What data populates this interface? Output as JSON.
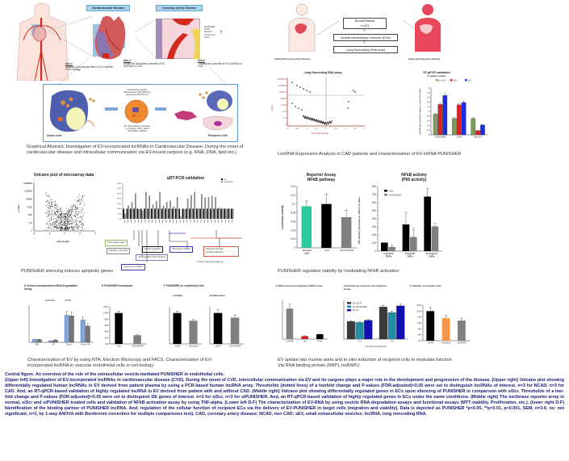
{
  "graphical_abstract": {
    "box_cvd": "Cardiovascular Disease",
    "box_cad": "Coronary Artery Disease",
    "aim1_title": "Aim-1",
    "aim1_text": "Analysis of functional effect of EV-lncRNA in EC biology",
    "aim2_title": "Aim-2",
    "aim2_text": "Unveil the biomarker potential of EV-lncRNAs in CVD",
    "aim3_title": "Aim-3",
    "aim3_text": "Therapeutic potential of EV-lncRNAs in CVD",
    "aim3_genes": [
      "PUNISHER",
      "GAS5",
      "MALAT1",
      "FGF14-AS1",
      "HCL2"
    ],
    "donor_label": "Donor cells",
    "recipient_label": "Recipient cells",
    "ev_text": [
      "Extracellular vesicles",
      "Microvesicles (100-1000 nm)",
      "Exosomes (30-100 nm)"
    ],
    "ev_bottom_text": [
      "EV with bioactive molecules",
      "i.e. Proteins, DNA, mRNA",
      "(MicroRNA, lncRNA)"
    ],
    "donor_parts": [
      "MVB",
      "EV",
      "Cytoplasm",
      "RBP",
      "PUNISHER",
      "GAS5",
      "Nucleus",
      "Exosomes"
    ],
    "recipient_parts": [
      "Endothelial cells",
      "Cytoplasm",
      "Nucleus",
      "Fibroblasts",
      "Cardiomyocytes"
    ],
    "caption": "Graphical Abstract. Investigation of EV-incorporated lncRNAs in Cardiovascular Disease. During the onset of cardiovascular disease and intracellular communication via EV-bound cargoes (e.g. RNA, DNA, lipid etc.)"
  },
  "patient_flow": {
    "box1_line1": "Blood/Plasma",
    "box1_line2": "n=221",
    "box2": "Isolate extracellular Vesicles (EVs)",
    "box3": "Long Noncoding RNA array",
    "healthy_label": "Healthy (Non-Coronary Artery Disease)",
    "disease_label": "Disease (Coronary Artery Disease)"
  },
  "lnc_array": {
    "title": "Long Noncoding RNA array",
    "xlabel": "log2 (fold change)",
    "ylabel": "p-value",
    "yticks": [
      "0.0078125",
      "0.015625",
      "0.03125",
      "0.0625",
      "0.125",
      "0.25",
      "0.5",
      "1"
    ],
    "xticks": [
      "-2",
      "-1.5",
      "-1",
      "-0.5",
      "0",
      "0.5",
      "1",
      "1.5",
      "2"
    ]
  },
  "rtqpcr_patient": {
    "title": "RT-qPCR validation",
    "subtitle": "in patient sample",
    "ylabel": "lncRNA expression (Fold change to control (Non-CAD))",
    "caption": "LncRNA Expression Analysis in CAD patients and characterization of EV-lnRNA PUNISHER"
  },
  "microarray_volcano": {
    "title": "Volcano plot of microarray data",
    "xlabel": "ratio (log2)",
    "ylabel": "p-value",
    "yticks": [
      "0.000001",
      "0.00001",
      "0.0001",
      "0.001",
      "0.01",
      "0.1",
      "1"
    ],
    "xticks": [
      "-4",
      "-2",
      "0",
      "2",
      "4"
    ]
  },
  "qrtpcr_validation": {
    "title": "qRT-PCR validation",
    "ylabel": "Expression of transcripts (% to siScr)",
    "legend": [
      "siScr",
      "siPUNISHER"
    ],
    "categories_boxes": [
      {
        "label": "Transcription factor",
        "color": "#8fbf5a"
      },
      {
        "label": "Signaling, TGF-beta",
        "color": "#888888"
      },
      {
        "label": "Growth regulation",
        "color": "#222222"
      },
      {
        "label": "Chromatin modifiers",
        "color": "#3a3aa8"
      },
      {
        "label": "Cardiogenesis, Wnt signaling",
        "color": "#8a6fc0"
      },
      {
        "label": "Component of PRC2",
        "color": "#3a3aa8"
      },
      {
        "label": "Apoptosis and cell growth/proliferation",
        "color": "#d0603a"
      }
    ],
    "source": "Source: www.genecards.org",
    "caption": "PUNISHER silencing induces apoptotic genes"
  },
  "reporter_assay": {
    "title_line1": "Reporter Assay",
    "title_line2": "NFkB pathway",
    "caption": "PUNISHER regulates  viability by modulating NFkB activation"
  },
  "nfkb_activity": {
    "title_line1": "NFkB activity",
    "title_line2": "(P65 activity)"
  },
  "lower_left": {
    "d_title": "D  Vesicle-incorporated lncRNA Degradation Assay",
    "e_title": "E  PUNISHER Knockdown",
    "f_title": "F  PUNISHER on endothelial cells",
    "f_sub1": "Viability",
    "f_sub2": "Proliferation",
    "caption": "Characterization of EV by using NTA, Electron Microcopy and FACS. Characterization of EV-incorporated lncRNA in vascular endothelial cells in cell biology"
  },
  "lower_right": {
    "d_title": "D  RNA-immunoprecipitation (RIP) Assay",
    "e_title": "E  EV-induced recipient cell migration assay",
    "f_title": "F  Viability of recipient cells",
    "caption_line1": "EV uptake into murine aorta and in vitro induction  of recipient cells to modulate function",
    "caption_line2": "Via RNA binding protein (RBP), hnRNPU"
  },
  "central_caption": {
    "title": "Central figure. An overview of the role of the extracellular vesicle-mediated PUNISHER in endothelial cells.",
    "body": "(Upper left) Investigation of EV-incorporated lncRNAs in cardiovascular disease (CVD). During the onset of CVD, intercellular communication via EV and its cargoes plays a major role in the development and progression of the disease. (Upper right) Volcano plot showing differentially regulated human lncRNAs in EV derived from patient plasma by using a PCR-based human lncRNA array. Thresholds (dotted lines) of a twofold change and P-values (FDR-adjusted)<0.05 were set to distinguish lncRNAs of interest. n=3 for NCAD, n=3 for CAD. And, an RT-qPCR-based validation of highly regulated lncRNA in EV derived from patient with and without CAD. (Middle right) Volcano plot showing differentially regulated genes in ECs upon silencing of PUNISHER in comparison with siScr. Thresholds of a two-fold change and P-values (FDR-adjusted)<0.05 were set to distinguish DE genes of interest. n=3 for siScr, n=3 for siPUNISHER. And, an RT-qPCR-based validation of highly regulated genes in ECs under the same conditions. (Middle right) The luciferase reporter array in normal, siScr and siPUNISHER treated cells and validation of NFkB activation assay by using TNF-alpha. (Lower left D-F) The characterization of EV-RNA by using vesicle RNA-degradation assays and functional assays (MTT-viability, Proliferation, etc.). (lower right D-F) Identification of the binding partner of PUNISHER lncRNA. And, regulation of the cellular function of recipient ECs via the delivery of EV-PUNISHER in target cells (migration and viability). Data is depicted as PUNISHER *p<0.05, **p<0.01, p<0.001, SEM, n=3-6; ns: not significant, n=3, by 1-way ANOVA with Bonferroni correction for multiple comparisons test). CAD, coronary artery disease; NCAD, non CAD; sEV, small extracellular vesicles; lncRNA, long noncoding RNA."
  },
  "chart_data": [
    {
      "id": "rtqpcr_patient",
      "type": "bar",
      "title": "RT-qPCR validation in patient sample",
      "categories": [
        "PUNISHER",
        "GAS5",
        "MALAT1"
      ],
      "series": [
        {
          "name": "No CAD",
          "color": "#7f9a5c",
          "values": [
            0.88,
            0.7,
            0.7
          ]
        },
        {
          "name": "CAD",
          "color": "#e02020",
          "values": [
            1.3,
            1.28,
            0.18
          ]
        },
        {
          "name": "ACS",
          "color": "#1a2ee0",
          "values": [
            1.68,
            1.38,
            0.42
          ]
        }
      ],
      "ylabel": "lncRNA expression (Fold change to control (Non-CAD))",
      "yticks": [
        "0",
        "0.2",
        "0.4",
        "0.6",
        "0.8",
        "1",
        "1.2",
        "1.4",
        "1.6",
        "1.8",
        "2"
      ],
      "ylim": [
        0,
        2
      ],
      "legend": "top"
    },
    {
      "id": "reporter_assay",
      "type": "bar",
      "title": "Reporter Assay NFkB pathway",
      "categories": [
        "Normal cells",
        "siScr",
        "siPUNISHER"
      ],
      "values": [
        0.095,
        0.1,
        0.07
      ],
      "errors": [
        0.012,
        0.022,
        0.016
      ],
      "colors": [
        "#2ec9a0",
        "#000000",
        "#808080"
      ],
      "ylabel": "Luciferase activity",
      "yticks": [
        "0",
        "0.02",
        "0.04",
        "0.06",
        "0.08",
        "0.1",
        "0.12",
        "0.14"
      ],
      "ylim": [
        0,
        0.14
      ],
      "annotations": [
        "",
        "",
        "*"
      ]
    },
    {
      "id": "nfkb_activity",
      "type": "bar",
      "title": "NFkB activity (P65 activity)",
      "categories": [
        "0.1ng/ml TNFa",
        "1.0ng/ml TNFa",
        "10.0ng/ml TNFa"
      ],
      "series": [
        {
          "name": "siScr",
          "color": "#000000",
          "values": [
            105,
            330,
            675
          ],
          "errors": [
            0,
            150,
            100
          ]
        },
        {
          "name": "siPUNISHER",
          "color": "#808080",
          "values": [
            50,
            175,
            305
          ],
          "errors": [
            15,
            90,
            15
          ]
        }
      ],
      "annotations": [
        "*",
        "**",
        "***"
      ],
      "ylabel": "P65 activity (Absorbance 450nm % siScr)",
      "yticks": [
        "0",
        "100",
        "200",
        "300",
        "400",
        "500",
        "600",
        "700",
        "800"
      ],
      "ylim": [
        0,
        800
      ],
      "legend": "top-left"
    },
    {
      "id": "qrtpcr_validation",
      "type": "bar",
      "title": "qRT-PCR validation",
      "series": [
        {
          "name": "siScr",
          "color": "#111111",
          "values": [
            100,
            100,
            100,
            100,
            100,
            100,
            100,
            100,
            100,
            100,
            100,
            100,
            100,
            100,
            100,
            100,
            100,
            100,
            100,
            100,
            100,
            100,
            100,
            100,
            100,
            100,
            100,
            100,
            100,
            100,
            100,
            100
          ]
        },
        {
          "name": "siPUNISHER",
          "color": "#888888",
          "values": [
            50,
            130,
            165,
            250,
            95,
            80,
            265,
            230,
            140,
            175,
            265,
            130,
            165,
            180,
            120,
            215,
            20,
            95,
            200,
            235,
            265,
            105,
            245,
            210,
            215,
            225,
            215,
            110,
            100,
            100,
            100,
            100
          ]
        }
      ],
      "yticks": [
        "0%",
        "50%",
        "100%",
        "150%",
        "200%",
        "250%",
        "300%",
        "350%"
      ],
      "ylim": [
        0,
        350
      ]
    },
    {
      "id": "lnc_array_volcano",
      "type": "scatter",
      "title": "Long Noncoding RNA array",
      "xlabel": "log2 (fold change)",
      "ylabel": "p-value",
      "xlim": [
        -2,
        2
      ]
    },
    {
      "id": "microarray_volcano",
      "type": "scatter",
      "title": "Volcano plot of microarray data",
      "xlabel": "ratio (log2)",
      "ylabel": "p-value",
      "xlim": [
        -4,
        4
      ]
    },
    {
      "id": "degradation_assay",
      "type": "bar",
      "title": "Vesicle-incorporated lncRNA Degradation Assay",
      "categories": [
        "PBS",
        "PK",
        "Triton X",
        "Triton X-PK"
      ],
      "series": [
        {
          "name": "PUNISHER",
          "color": "#7fa8e0",
          "values": [
            0.6,
            0.3,
            5.8,
            4.8
          ]
        },
        {
          "name": "GAPDH",
          "color": "#777777",
          "values": [
            0.6,
            0.5,
            5.7,
            3.5
          ]
        }
      ],
      "ylim": [
        0,
        8
      ]
    },
    {
      "id": "knockdown",
      "type": "bar",
      "title": "PUNISHER Knockdown",
      "categories": [
        "siScr",
        "siPUNISHER"
      ],
      "values": [
        100,
        28
      ],
      "colors": [
        "#000000",
        "#808080"
      ],
      "yticks": [
        "0%",
        "20%",
        "40%",
        "60%",
        "80%",
        "100%",
        "120%"
      ],
      "ylim": [
        0,
        120
      ]
    },
    {
      "id": "viability",
      "type": "bar",
      "title": "Viability",
      "categories": [
        "siSCR",
        "siPunisher"
      ],
      "values": [
        100,
        75
      ],
      "colors": [
        "#000000",
        "#808080"
      ],
      "ylim": [
        0,
        120
      ]
    },
    {
      "id": "proliferation",
      "type": "bar",
      "title": "Proliferation",
      "categories": [
        "siSCR",
        "siPUNISHER"
      ],
      "values": [
        100,
        85
      ],
      "colors": [
        "#000000",
        "#808080"
      ],
      "ylim": [
        0,
        120
      ]
    },
    {
      "id": "rip_assay",
      "type": "bar",
      "title": "RNA-immunoprecipitation (RIP) Assay",
      "categories": [
        "hnRNPU",
        "IgG",
        "PVP2"
      ],
      "values": [
        6.3,
        0.6,
        1.0
      ],
      "colors": [
        "#808080",
        "#d02020",
        "#000000"
      ],
      "ylim": [
        0,
        8
      ]
    },
    {
      "id": "migration_assay",
      "type": "bar",
      "title": "EV-induced recipient cell migration assay",
      "categories": [
        "0 h",
        "8 h"
      ],
      "series": [
        {
          "name": "EV-siSCR",
          "color": "#3a3a3a",
          "values": [
            16,
            29
          ]
        },
        {
          "name": "EV-siPUNISHER",
          "color": "#1f8fa8",
          "values": [
            15,
            24
          ]
        },
        {
          "name": "EV-rab",
          "color": "#1010b0",
          "values": [
            17,
            30
          ]
        }
      ],
      "xlabel": "EV-induced recipient EC",
      "ylim": [
        0,
        35
      ]
    },
    {
      "id": "recipient_viability",
      "type": "bar",
      "title": "Viability of recipient cells",
      "categories": [
        "siSCR",
        "siPunisher",
        "sihnRNPU"
      ],
      "values": [
        100,
        76,
        68
      ],
      "colors": [
        "#000000",
        "#f5964a",
        "#808080"
      ],
      "yticks": [
        "0%",
        "20%",
        "40%",
        "60%",
        "80%",
        "100%",
        "120%"
      ],
      "ylim": [
        0,
        120
      ]
    }
  ]
}
